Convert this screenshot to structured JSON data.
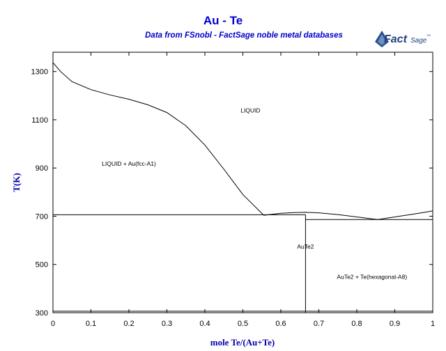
{
  "header": {
    "title": "Au - Te",
    "subtitle": "Data from FSnobl - FactSage noble metal databases",
    "logo_text": "FactSage",
    "logo_tm": "TM"
  },
  "chart_data": {
    "type": "line",
    "title": "Au - Te",
    "subtitle": "Data from FSnobl - FactSage noble metal databases",
    "xlabel": "mole Te/(Au+Te)",
    "ylabel": "T(K)",
    "xlim": [
      0,
      1
    ],
    "ylim": [
      300,
      1380
    ],
    "xticks": [
      0,
      0.1,
      0.2,
      0.3,
      0.4,
      0.5,
      0.6,
      0.7,
      0.8,
      0.9,
      1
    ],
    "xtick_labels": [
      "0",
      "0.1",
      "0.2",
      "0.3",
      "0.4",
      "0.5",
      "0.6",
      "0.7",
      "0.8",
      "0.9",
      "1"
    ],
    "yticks": [
      300,
      500,
      700,
      900,
      1100,
      1300
    ],
    "ytick_labels": [
      "300",
      "500",
      "700",
      "900",
      "1100",
      "1300"
    ],
    "grid": false,
    "line_color": "#000000",
    "series": [
      {
        "x": [
          0,
          0.02,
          0.05,
          0.1,
          0.15,
          0.2,
          0.25,
          0.3,
          0.35,
          0.4,
          0.45,
          0.5,
          0.555
        ],
        "y": [
          1337,
          1300,
          1258,
          1225,
          1203,
          1185,
          1162,
          1130,
          1075,
          995,
          895,
          790,
          704
        ]
      },
      {
        "x": [
          0.555,
          0.6,
          0.635,
          0.665,
          0.7,
          0.75,
          0.8,
          0.855
        ],
        "y": [
          704,
          712,
          715,
          716,
          714,
          707,
          697,
          686
        ]
      },
      {
        "x": [
          0.855,
          0.9,
          0.95,
          1.0
        ],
        "y": [
          686,
          697,
          709,
          722
        ]
      },
      {
        "x": [
          0,
          0.665
        ],
        "y": [
          706,
          706
        ]
      },
      {
        "x": [
          0.665,
          1.0
        ],
        "y": [
          686,
          686
        ]
      },
      {
        "x": [
          0.665,
          0.665
        ],
        "y": [
          300,
          706
        ]
      },
      {
        "x": [
          0,
          0.665
        ],
        "y": [
          306,
          306
        ]
      },
      {
        "x": [
          0.665,
          1.0
        ],
        "y": [
          306,
          306
        ]
      }
    ],
    "regions": [
      {
        "label": "LIQUID",
        "x": 0.52,
        "y": 1130
      },
      {
        "label": "LIQUID + Au(fcc-A1)",
        "x": 0.2,
        "y": 910
      },
      {
        "label": "AuTe2",
        "x": 0.665,
        "y": 565
      },
      {
        "label": "AuTe2 + Te(hexagonal-A8)",
        "x": 0.84,
        "y": 440
      }
    ]
  }
}
